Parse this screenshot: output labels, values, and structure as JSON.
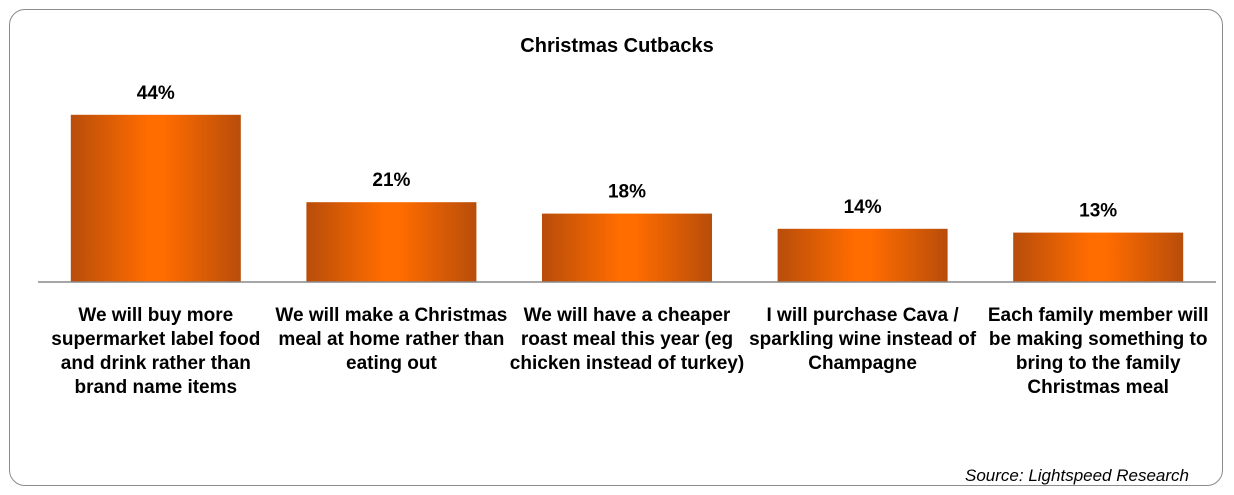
{
  "chart_data": {
    "type": "bar",
    "title": "Christmas Cutbacks",
    "categories": [
      "We will buy more supermarket label food and drink rather than brand name items",
      "We will make a Christmas meal at home rather than eating out",
      "We will have a cheaper roast meal this year (eg chicken instead of turkey)",
      "I will purchase Cava / sparkling wine instead of Champagne",
      "Each family member will be making something to bring to the family Christmas meal"
    ],
    "values": [
      44,
      21,
      18,
      14,
      13
    ],
    "data_labels": [
      "44%",
      "21%",
      "18%",
      "14%",
      "13%"
    ],
    "unit": "%",
    "ylim": [
      0,
      50
    ],
    "grid": false,
    "legend": "none",
    "bar_color": "#f26a0a",
    "source": "Source: Lightspeed Research"
  }
}
